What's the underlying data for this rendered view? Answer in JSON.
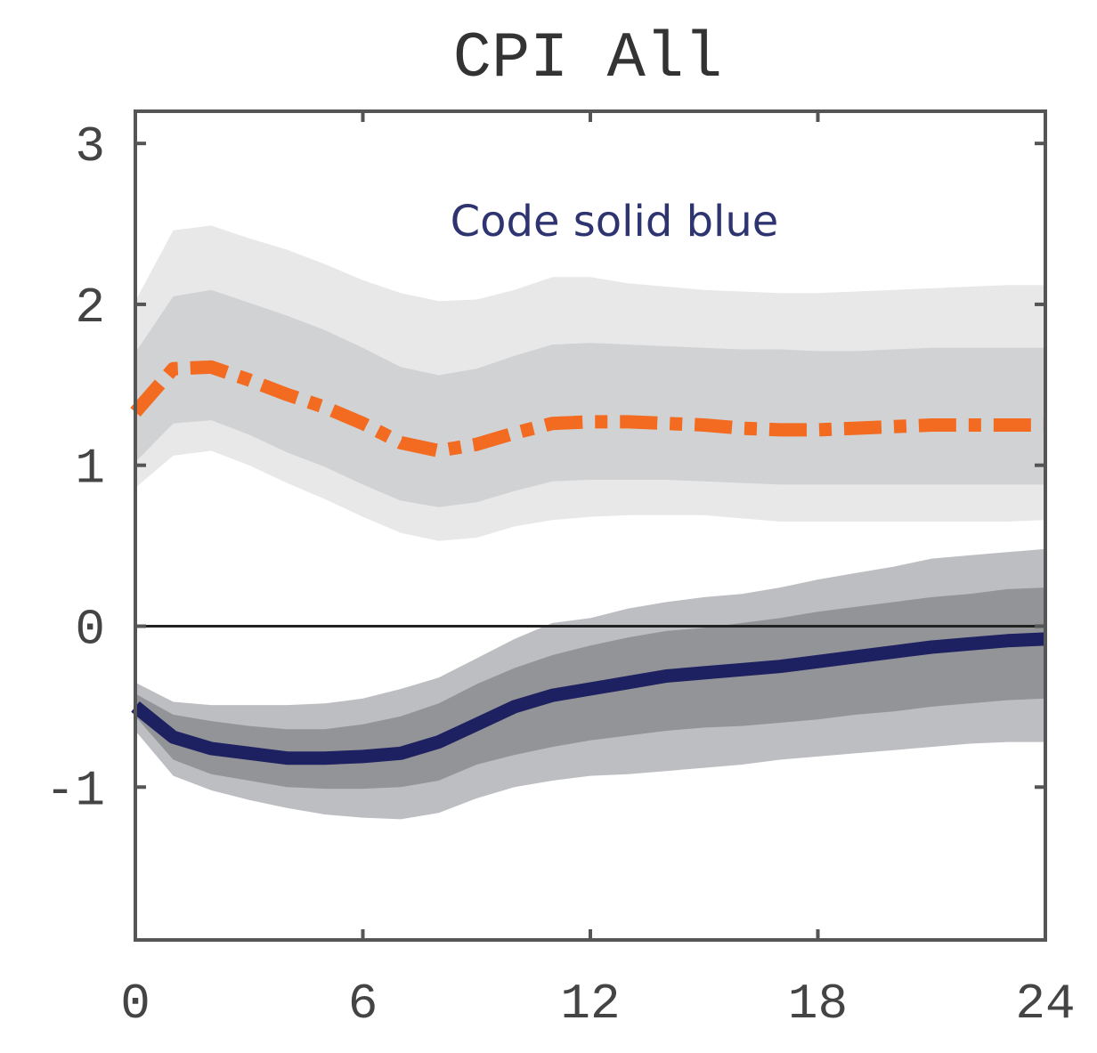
{
  "chart_data": {
    "type": "line",
    "title": "CPI All",
    "xlabel": "",
    "ylabel": "",
    "xlim": [
      0,
      24
    ],
    "ylim": [
      -1.95,
      3.2
    ],
    "x_ticks": [
      0,
      6,
      12,
      18,
      24
    ],
    "y_ticks": [
      -1,
      0,
      1,
      2,
      3
    ],
    "grid": false,
    "annotation": "Code solid blue",
    "x": [
      0,
      1,
      2,
      3,
      4,
      5,
      6,
      7,
      8,
      9,
      10,
      11,
      12,
      13,
      14,
      15,
      16,
      17,
      18,
      19,
      20,
      21,
      22,
      23,
      24
    ],
    "series": [
      {
        "style": "dash-dot",
        "color": "#f26b21",
        "values": [
          1.33,
          1.6,
          1.61,
          1.53,
          1.44,
          1.36,
          1.26,
          1.14,
          1.09,
          1.13,
          1.2,
          1.26,
          1.27,
          1.27,
          1.26,
          1.25,
          1.23,
          1.22,
          1.22,
          1.23,
          1.24,
          1.25,
          1.25,
          1.25,
          1.25
        ],
        "band_outer": {
          "color": "#e8e8e9",
          "lower": [
            0.86,
            1.06,
            1.09,
            1.0,
            0.89,
            0.79,
            0.68,
            0.58,
            0.53,
            0.55,
            0.62,
            0.66,
            0.68,
            0.69,
            0.69,
            0.69,
            0.67,
            0.65,
            0.65,
            0.65,
            0.65,
            0.65,
            0.65,
            0.65,
            0.66
          ],
          "upper": [
            2.02,
            2.46,
            2.49,
            2.41,
            2.34,
            2.25,
            2.15,
            2.07,
            2.02,
            2.03,
            2.09,
            2.17,
            2.17,
            2.13,
            2.11,
            2.09,
            2.08,
            2.07,
            2.07,
            2.08,
            2.09,
            2.1,
            2.11,
            2.12,
            2.12
          ]
        },
        "band_inner": {
          "color": "#d1d2d4",
          "lower": [
            1.02,
            1.26,
            1.28,
            1.19,
            1.08,
            0.99,
            0.88,
            0.78,
            0.74,
            0.77,
            0.84,
            0.9,
            0.91,
            0.91,
            0.91,
            0.9,
            0.89,
            0.88,
            0.88,
            0.88,
            0.88,
            0.88,
            0.88,
            0.88,
            0.88
          ],
          "upper": [
            1.7,
            2.05,
            2.09,
            2.01,
            1.93,
            1.84,
            1.73,
            1.61,
            1.56,
            1.6,
            1.68,
            1.75,
            1.76,
            1.75,
            1.74,
            1.73,
            1.72,
            1.72,
            1.71,
            1.71,
            1.72,
            1.73,
            1.73,
            1.73,
            1.73
          ]
        }
      },
      {
        "style": "solid",
        "color": "#1e2161",
        "values": [
          -0.5,
          -0.69,
          -0.76,
          -0.79,
          -0.82,
          -0.82,
          -0.81,
          -0.79,
          -0.72,
          -0.61,
          -0.5,
          -0.43,
          -0.39,
          -0.35,
          -0.31,
          -0.29,
          -0.27,
          -0.25,
          -0.22,
          -0.19,
          -0.16,
          -0.13,
          -0.11,
          -0.09,
          -0.08
        ],
        "band_outer": {
          "color": "#bdbec1",
          "lower": [
            -0.65,
            -0.93,
            -1.02,
            -1.08,
            -1.13,
            -1.17,
            -1.19,
            -1.2,
            -1.16,
            -1.07,
            -1.0,
            -0.96,
            -0.93,
            -0.92,
            -0.9,
            -0.88,
            -0.86,
            -0.83,
            -0.81,
            -0.79,
            -0.77,
            -0.75,
            -0.73,
            -0.72,
            -0.72
          ],
          "upper": [
            -0.35,
            -0.47,
            -0.49,
            -0.49,
            -0.49,
            -0.48,
            -0.45,
            -0.39,
            -0.32,
            -0.2,
            -0.08,
            0.02,
            0.05,
            0.11,
            0.15,
            0.18,
            0.2,
            0.24,
            0.29,
            0.33,
            0.37,
            0.42,
            0.44,
            0.46,
            0.48
          ]
        },
        "band_inner": {
          "color": "#939497",
          "lower": [
            -0.56,
            -0.83,
            -0.92,
            -0.96,
            -1.0,
            -1.01,
            -1.01,
            -1.0,
            -0.96,
            -0.86,
            -0.8,
            -0.75,
            -0.71,
            -0.68,
            -0.65,
            -0.63,
            -0.62,
            -0.6,
            -0.58,
            -0.55,
            -0.53,
            -0.5,
            -0.48,
            -0.46,
            -0.45
          ],
          "upper": [
            -0.42,
            -0.55,
            -0.59,
            -0.62,
            -0.64,
            -0.64,
            -0.61,
            -0.56,
            -0.48,
            -0.36,
            -0.26,
            -0.18,
            -0.12,
            -0.07,
            -0.03,
            -0.01,
            0.02,
            0.05,
            0.09,
            0.12,
            0.15,
            0.18,
            0.2,
            0.23,
            0.24
          ]
        }
      }
    ]
  }
}
